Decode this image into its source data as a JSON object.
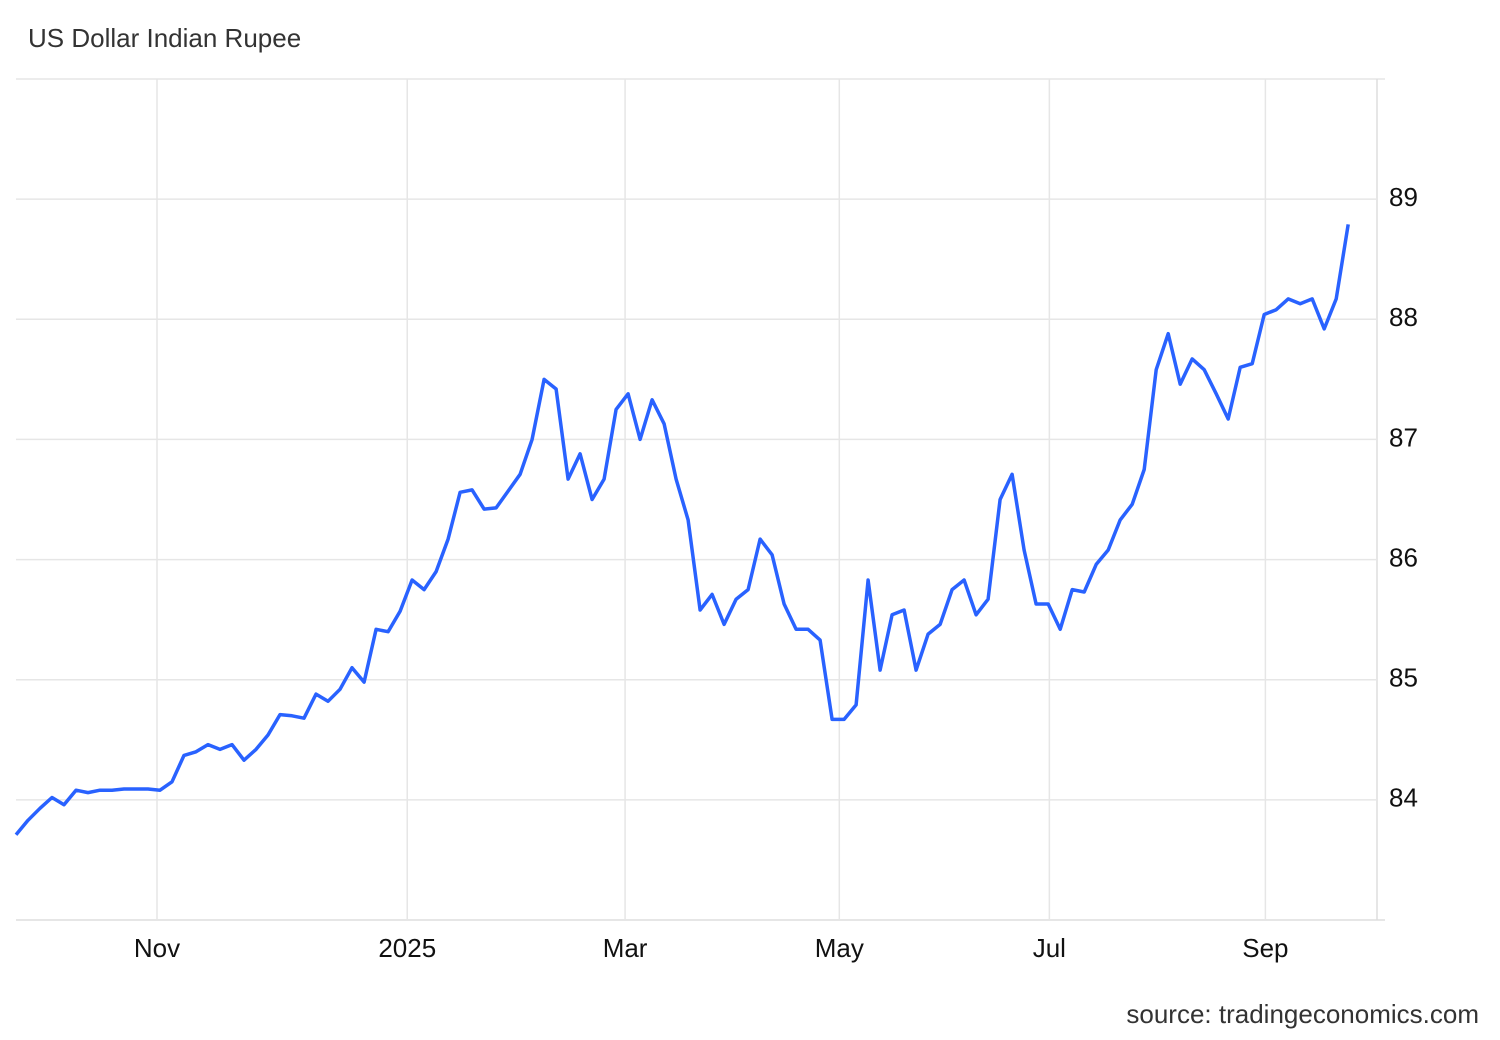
{
  "chart_data": {
    "type": "line",
    "title": "US Dollar Indian Rupee",
    "source": "source: tradingeconomics.com",
    "color": "#2962ff",
    "grid": true,
    "values": [
      83.71,
      83.83,
      83.93,
      84.02,
      83.96,
      84.08,
      84.06,
      84.08,
      84.08,
      84.09,
      84.09,
      84.09,
      84.08,
      84.15,
      84.37,
      84.4,
      84.46,
      84.42,
      84.46,
      84.33,
      84.42,
      84.54,
      84.71,
      84.7,
      84.68,
      84.88,
      84.82,
      84.92,
      85.1,
      84.98,
      85.42,
      85.4,
      85.57,
      85.83,
      85.75,
      85.9,
      86.17,
      86.56,
      86.58,
      86.42,
      86.43,
      86.57,
      86.71,
      87.0,
      87.5,
      87.42,
      86.67,
      86.88,
      86.5,
      86.67,
      87.25,
      87.38,
      87.0,
      87.33,
      87.13,
      86.67,
      86.33,
      85.58,
      85.71,
      85.46,
      85.67,
      85.75,
      86.17,
      86.04,
      85.63,
      85.42,
      85.42,
      85.33,
      84.67,
      84.67,
      84.79,
      85.83,
      85.08,
      85.54,
      85.58,
      85.08,
      85.38,
      85.46,
      85.75,
      85.83,
      85.54,
      85.67,
      86.5,
      86.71,
      86.08,
      85.63,
      85.63,
      85.42,
      85.75,
      85.73,
      85.96,
      86.08,
      86.33,
      86.46,
      86.75,
      87.58,
      87.88,
      87.46,
      87.67,
      87.58,
      87.38,
      87.17,
      87.6,
      87.63,
      88.04,
      88.08,
      88.17,
      88.13,
      88.17,
      87.92,
      88.17,
      88.79
    ],
    "xlim": [
      0,
      113.4
    ],
    "xticks": [
      {
        "value": 11.75,
        "label": "Nov"
      },
      {
        "value": 32.6,
        "label": "2025"
      },
      {
        "value": 50.75,
        "label": "Mar"
      },
      {
        "value": 68.6,
        "label": "May"
      },
      {
        "value": 86.1,
        "label": "Jul"
      },
      {
        "value": 104.1,
        "label": "Sep"
      }
    ],
    "ylim": [
      83,
      90
    ],
    "yticks": [
      84,
      85,
      86,
      87,
      88,
      89
    ]
  }
}
